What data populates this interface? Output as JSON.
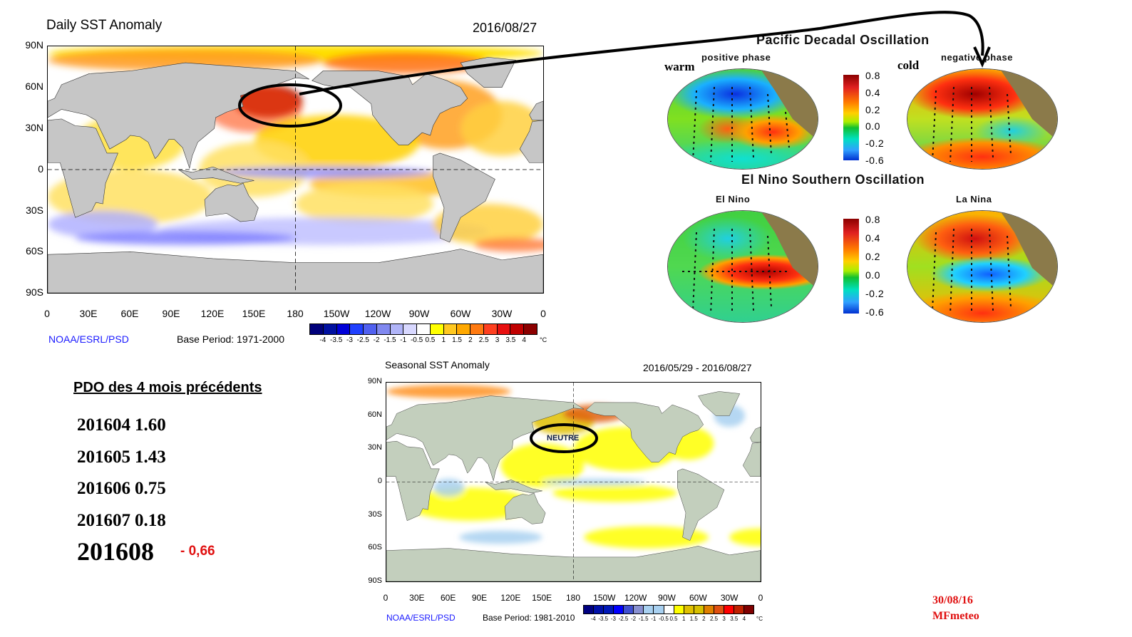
{
  "daily_map": {
    "title": "Daily SST Anomaly",
    "date": "2016/08/27",
    "lat_labels": [
      "90N",
      "60N",
      "30N",
      "0",
      "30S",
      "60S",
      "90S"
    ],
    "lon_labels": [
      "0",
      "30E",
      "60E",
      "90E",
      "120E",
      "150E",
      "180",
      "150W",
      "120W",
      "90W",
      "60W",
      "30W",
      "0"
    ],
    "source": "NOAA/ESRL/PSD",
    "base_period": "Base Period: 1971-2000",
    "colorbar_labels": [
      "-4",
      "-3.5",
      "-3",
      "-2.5",
      "-2",
      "-1.5",
      "-1",
      "-0.5",
      "0.5",
      "1",
      "1.5",
      "2",
      "2.5",
      "3",
      "3.5",
      "4"
    ],
    "colorbar_unit": "°C",
    "colorbar_colors": [
      "#00007a",
      "#0010a0",
      "#0000d8",
      "#2040ff",
      "#5060f0",
      "#8088f0",
      "#b0b4f8",
      "#d8d8ff",
      "#ffffff",
      "#ffff00",
      "#ffc820",
      "#ffa800",
      "#ff7a10",
      "#ff4020",
      "#e81010",
      "#c00000",
      "#8c0000"
    ]
  },
  "pdo_panel": {
    "title": "Pacific Decadal Oscillation",
    "positive_label": "positive phase",
    "negative_label": "negative phase",
    "warm_label": "warm",
    "cold_label": "cold",
    "scale": [
      "0.8",
      "0.4",
      "0.2",
      "0.0",
      "-0.2",
      "-0.6"
    ]
  },
  "enso_panel": {
    "title": "El Nino Southern Oscillation",
    "el_nino_label": "El Nino",
    "la_nina_label": "La Nina",
    "scale": [
      "0.8",
      "0.4",
      "0.2",
      "0.0",
      "-0.2",
      "-0.6"
    ]
  },
  "pdo": {
    "heading": "PDO des 4 mois précédents",
    "rows": [
      {
        "month": "201604",
        "value": "1.60"
      },
      {
        "month": "201605",
        "value": "1.43"
      },
      {
        "month": "201606",
        "value": "0.75"
      },
      {
        "month": "201607",
        "value": "0.18"
      }
    ],
    "current_month": "201608",
    "current_value": "- 0,66"
  },
  "seasonal_map": {
    "title": "Seasonal SST Anomaly",
    "date": "2016/05/29 - 2016/08/27",
    "annotation": "NEUTRE",
    "lat_labels": [
      "90N",
      "60N",
      "30N",
      "0",
      "30S",
      "60S",
      "90S"
    ],
    "lon_labels": [
      "0",
      "30E",
      "60E",
      "90E",
      "120E",
      "150E",
      "180",
      "150W",
      "120W",
      "90W",
      "60W",
      "30W",
      "0"
    ],
    "source": "NOAA/ESRL/PSD",
    "base_period": "Base Period: 1981-2010",
    "colorbar_labels": [
      "-4",
      "-3.5",
      "-3",
      "-2.5",
      "-2",
      "-1.5",
      "-1",
      "-0.5",
      "0.5",
      "1",
      "1.5",
      "2",
      "2.5",
      "3",
      "3.5",
      "4"
    ],
    "colorbar_unit": "°C",
    "colorbar_colors": [
      "#000080",
      "#0010a8",
      "#0018b8",
      "#0000ff",
      "#4050d0",
      "#8890d0",
      "#a8d0f0",
      "#a8d0f0",
      "#ffffff",
      "#ffff00",
      "#e0c000",
      "#d8c000",
      "#e08000",
      "#e05010",
      "#ff0000",
      "#c02000",
      "#800000"
    ]
  },
  "signature": {
    "date": "30/08/16",
    "author": "MFmeteo"
  }
}
